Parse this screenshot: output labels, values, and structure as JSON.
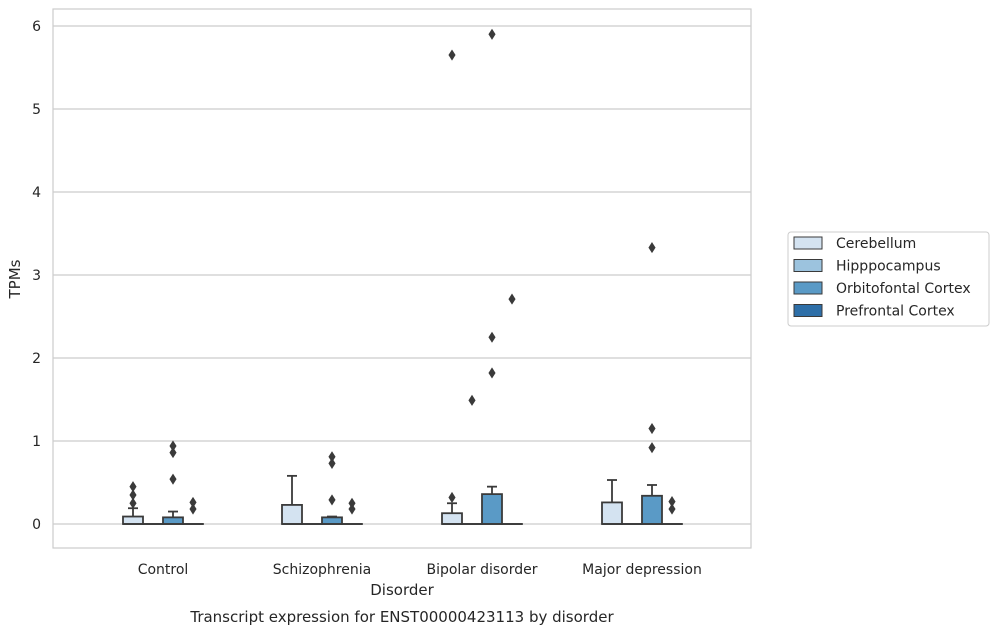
{
  "chart_data": {
    "type": "box",
    "title": "",
    "caption": "Transcript expression for ENST00000423113 by disorder",
    "xlabel": "Disorder",
    "ylabel": "TPMs",
    "ylim": [
      -0.28,
      6.2
    ],
    "yticks": [
      0,
      1,
      2,
      3,
      4,
      5,
      6
    ],
    "ytick_labels": [
      "0",
      "1",
      "2",
      "3",
      "4",
      "5",
      "6"
    ],
    "grid": true,
    "legend_position": "right",
    "categories": [
      "Control",
      "Schizophrenia",
      "Bipolar disorder",
      "Major depression"
    ],
    "series": [
      {
        "name": "Cerebellum",
        "color": "#d4e3f1",
        "boxes": [
          {
            "q1": 0,
            "median": 0,
            "q3": 0.09,
            "whisker_low": 0,
            "whisker_high": 0.19,
            "outliers": [
              0.25,
              0.35,
              0.45
            ]
          },
          {
            "q1": 0,
            "median": 0,
            "q3": 0.23,
            "whisker_low": 0,
            "whisker_high": 0.58,
            "outliers": []
          },
          {
            "q1": 0,
            "median": 0,
            "q3": 0.13,
            "whisker_low": 0,
            "whisker_high": 0.25,
            "outliers": [
              0.32,
              5.65
            ]
          },
          {
            "q1": 0,
            "median": 0,
            "q3": 0.26,
            "whisker_low": 0,
            "whisker_high": 0.53,
            "outliers": []
          }
        ]
      },
      {
        "name": "Hipppocampus",
        "color": "#9cc3de",
        "boxes": [
          {
            "q1": 0,
            "median": 0,
            "q3": 0,
            "whisker_low": 0,
            "whisker_high": 0,
            "outliers": []
          },
          {
            "q1": 0,
            "median": 0,
            "q3": 0,
            "whisker_low": 0,
            "whisker_high": 0,
            "outliers": []
          },
          {
            "q1": 0,
            "median": 0,
            "q3": 0,
            "whisker_low": 0,
            "whisker_high": 0,
            "outliers": [
              1.49
            ]
          },
          {
            "q1": 0,
            "median": 0,
            "q3": 0,
            "whisker_low": 0,
            "whisker_high": 0,
            "outliers": []
          }
        ]
      },
      {
        "name": "Orbitofontal Cortex",
        "color": "#5a9ac6",
        "boxes": [
          {
            "q1": 0,
            "median": 0,
            "q3": 0.08,
            "whisker_low": 0,
            "whisker_high": 0.15,
            "outliers": [
              0.54,
              0.86,
              0.94
            ]
          },
          {
            "q1": 0,
            "median": 0,
            "q3": 0.08,
            "whisker_low": 0,
            "whisker_high": 0.09,
            "outliers": [
              0.29,
              0.73,
              0.81
            ]
          },
          {
            "q1": 0,
            "median": 0,
            "q3": 0.36,
            "whisker_low": 0,
            "whisker_high": 0.45,
            "outliers": [
              1.82,
              2.25,
              5.9
            ]
          },
          {
            "q1": 0,
            "median": 0,
            "q3": 0.34,
            "whisker_low": 0,
            "whisker_high": 0.47,
            "outliers": [
              0.92,
              1.15,
              3.33
            ]
          }
        ]
      },
      {
        "name": "Prefrontal Cortex",
        "color": "#2e6fa8",
        "boxes": [
          {
            "q1": 0,
            "median": 0,
            "q3": 0,
            "whisker_low": 0,
            "whisker_high": 0,
            "outliers": [
              0.18,
              0.26
            ]
          },
          {
            "q1": 0,
            "median": 0,
            "q3": 0,
            "whisker_low": 0,
            "whisker_high": 0,
            "outliers": [
              0.18,
              0.25
            ]
          },
          {
            "q1": 0,
            "median": 0,
            "q3": 0,
            "whisker_low": 0,
            "whisker_high": 0,
            "outliers": [
              2.71
            ]
          },
          {
            "q1": 0,
            "median": 0,
            "q3": 0,
            "whisker_low": 0,
            "whisker_high": 0,
            "outliers": [
              0.18,
              0.27
            ]
          }
        ]
      }
    ]
  }
}
